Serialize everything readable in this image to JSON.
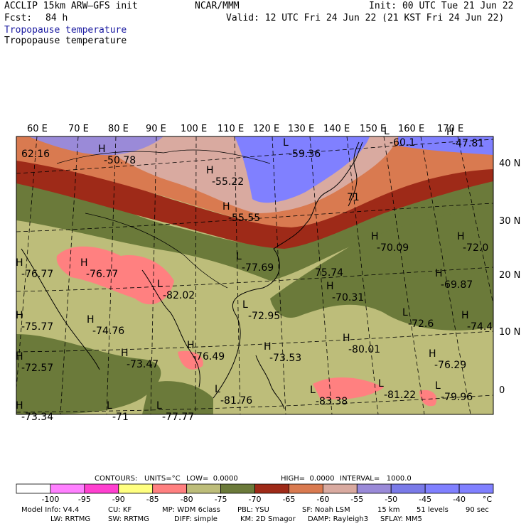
{
  "header": {
    "model": "ACCLIP 15km ARW–GFS init",
    "center": "NCAR/MMM",
    "init": "Init: 00 UTC Tue 21 Jun 22",
    "fcst_label": "Fcst:",
    "fcst_value": "84 h",
    "valid": "Valid: 12 UTC Fri 24 Jun 22 (21 KST Fri 24 Jun 22)",
    "field_title": "Tropopause temperature",
    "field_subtitle": "Tropopause temperature"
  },
  "map_labels": {
    "lon": [
      "60 E",
      "70 E",
      "80 E",
      "90 E",
      "100 E",
      "110 E",
      "120 E",
      "130 E",
      "140 E",
      "150 E",
      "160 E",
      "170 E"
    ],
    "lat": [
      "40 N",
      "30 N",
      "20 N",
      "10 N",
      "0"
    ]
  },
  "extrema": [
    {
      "mark": "",
      "value": "62.16"
    },
    {
      "mark": "H",
      "value": "-50.78"
    },
    {
      "mark": "H",
      "value": "-55.22"
    },
    {
      "mark": "L",
      "value": "-59.36"
    },
    {
      "mark": "L",
      "value": "-60.1"
    },
    {
      "mark": "H",
      "value": "-47.81"
    },
    {
      "mark": "H",
      "value": "-55.55"
    },
    {
      "mark": "",
      "value": "71"
    },
    {
      "mark": "H",
      "value": "-70.09"
    },
    {
      "mark": "H",
      "value": "-72.0"
    },
    {
      "mark": "H",
      "value": "-76.77"
    },
    {
      "mark": "H",
      "value": "-76.77"
    },
    {
      "mark": "L",
      "value": "-77.69"
    },
    {
      "mark": "",
      "value": "75.74"
    },
    {
      "mark": "L",
      "value": "-82.02"
    },
    {
      "mark": "H",
      "value": "-70.31"
    },
    {
      "mark": "H",
      "value": "-69.87"
    },
    {
      "mark": "H",
      "value": "-75.77"
    },
    {
      "mark": "H",
      "value": "-74.76"
    },
    {
      "mark": "L",
      "value": "-72.95"
    },
    {
      "mark": "L",
      "value": "-72.6"
    },
    {
      "mark": "H",
      "value": "-74.4"
    },
    {
      "mark": "H",
      "value": "-80.01"
    },
    {
      "mark": "H",
      "value": "-72.57"
    },
    {
      "mark": "H",
      "value": "-73.47"
    },
    {
      "mark": "H",
      "value": "-76.49"
    },
    {
      "mark": "H",
      "value": "-73.53"
    },
    {
      "mark": "H",
      "value": "-76.29"
    },
    {
      "mark": "H",
      "value": "-73.34"
    },
    {
      "mark": "L",
      "value": "-71"
    },
    {
      "mark": "L",
      "value": "-77.77"
    },
    {
      "mark": "L",
      "value": "-81.76"
    },
    {
      "mark": "L",
      "value": "-83.38"
    },
    {
      "mark": "L",
      "value": "-81.22"
    },
    {
      "mark": "L",
      "value": "-79.96"
    }
  ],
  "contour_info": {
    "contours": "CONTOURS:",
    "units": "UNITS=°C",
    "low": "LOW=  0.0000",
    "high": "HIGH=  0.0000",
    "interval": "INTERVAL=   1000.0"
  },
  "colorbar": {
    "labels": [
      "-100",
      "-95",
      "-90",
      "-85",
      "-80",
      "-75",
      "-70",
      "-65",
      "-60",
      "-55",
      "-50",
      "-45",
      "-40"
    ],
    "unit": "°C",
    "colors": [
      "#ffffff",
      "#ff80ff",
      "#ff40d0",
      "#ffff80",
      "#ff8080",
      "#bdbd7a",
      "#6b7a3a",
      "#9e2a18",
      "#d97a50",
      "#d9aaa0",
      "#9a8ad8",
      "#7a7ae8",
      "#8080ff"
    ]
  },
  "footer": {
    "line1": [
      "Model Info: V4.4",
      "CU: KF",
      "MP: WDM 6class",
      "PBL: YSU",
      "SF: Noah LSM",
      "15 km",
      "51 levels",
      "90 sec"
    ],
    "line2": [
      "LW: RRTMG",
      "SW: RRTMG",
      "DIFF: simple",
      "KM: 2D Smagor",
      "DAMP: Rayleigh3",
      "SFLAY: MM5"
    ]
  }
}
